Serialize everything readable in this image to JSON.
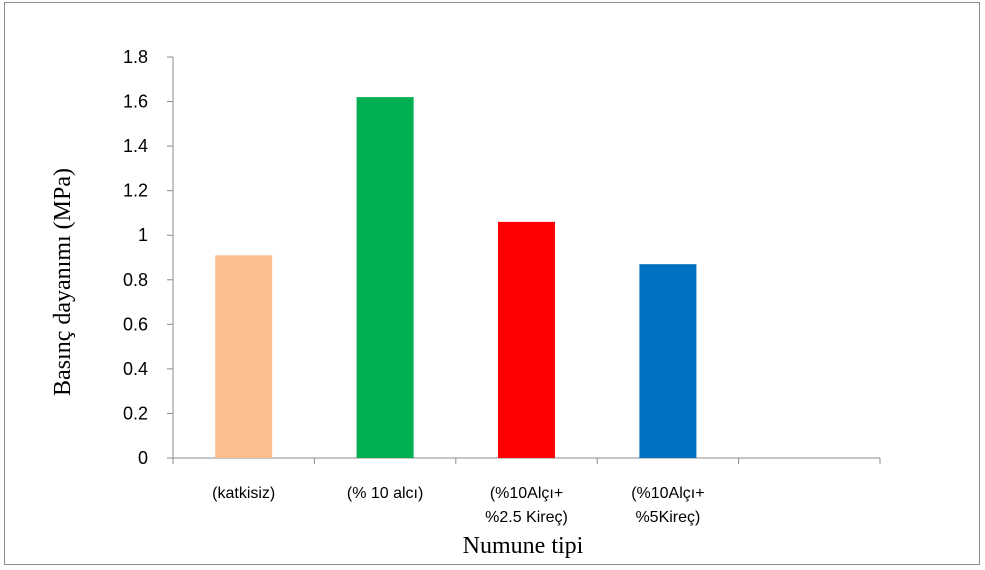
{
  "chart_data": {
    "type": "bar",
    "title": "",
    "xlabel": "Numune tipi",
    "ylabel": "Basınç dayanımı (MPa)",
    "ylim": [
      0,
      1.8
    ],
    "yticks": [
      "0",
      "0.2",
      "0.4",
      "0.6",
      "0.8",
      "1",
      "1.2",
      "1.4",
      "1.6",
      "1.8"
    ],
    "grid": false,
    "legend": "none",
    "categories": [
      [
        "(katkisiz)"
      ],
      [
        "(% 10 alcı)"
      ],
      [
        "(%10Alçı+",
        "%2.5 Kireç)"
      ],
      [
        "(%10Alçı+",
        "%5Kireç)"
      ],
      [
        ""
      ]
    ],
    "values": [
      0.91,
      1.62,
      1.06,
      0.87,
      null
    ],
    "colors": [
      "#F9BF8F",
      "#00B050",
      "#FF0000",
      "#0070C0",
      "#ffffff"
    ]
  }
}
